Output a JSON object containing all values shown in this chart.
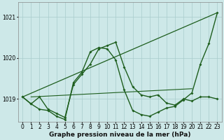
{
  "title": "Graphe pression niveau de la mer (hPa)",
  "background_color": "#cde8e8",
  "line_color": "#1e5e1e",
  "grid_color": "#a8cccc",
  "xlim": [
    -0.5,
    23.5
  ],
  "ylim": [
    1018.45,
    1021.35
  ],
  "yticks": [
    1019,
    1020,
    1021
  ],
  "xticks": [
    0,
    1,
    2,
    3,
    4,
    5,
    6,
    7,
    8,
    9,
    10,
    11,
    12,
    13,
    14,
    15,
    16,
    17,
    18,
    19,
    20,
    21,
    22,
    23
  ],
  "title_fontsize": 6.5,
  "tick_fontsize": 5.5,
  "series1_x": [
    0,
    1,
    2,
    3,
    4,
    5,
    6,
    7,
    8,
    9,
    10,
    11,
    12,
    13,
    14,
    15,
    16,
    17,
    18,
    19,
    20,
    21,
    22,
    23
  ],
  "series1_y": [
    1019.05,
    1018.88,
    1019.05,
    1018.75,
    1018.65,
    1018.55,
    1019.35,
    1019.6,
    1019.85,
    1020.22,
    1020.3,
    1020.38,
    1019.78,
    1019.3,
    1019.1,
    1019.05,
    1019.1,
    1018.9,
    1018.85,
    1019.0,
    1018.95,
    1019.05,
    1019.05,
    1019.0
  ],
  "series2_x": [
    0,
    1,
    2,
    3,
    4,
    5,
    6,
    7,
    8,
    9,
    10,
    11,
    12,
    13,
    14,
    15,
    16,
    17,
    18,
    19,
    20,
    21,
    22,
    23
  ],
  "series2_y": [
    1019.05,
    1018.88,
    1018.75,
    1018.72,
    1018.58,
    1018.5,
    1019.4,
    1019.65,
    1020.15,
    1020.25,
    1020.22,
    1019.95,
    1019.22,
    1018.72,
    1018.62,
    1018.58,
    1018.68,
    1018.78,
    1018.82,
    1018.98,
    1019.15,
    1019.85,
    1020.35,
    1021.1
  ],
  "series3_x": [
    0,
    23
  ],
  "series3_y": [
    1019.05,
    1021.1
  ],
  "series4_x": [
    1,
    20
  ],
  "series4_y": [
    1019.05,
    1019.25
  ]
}
